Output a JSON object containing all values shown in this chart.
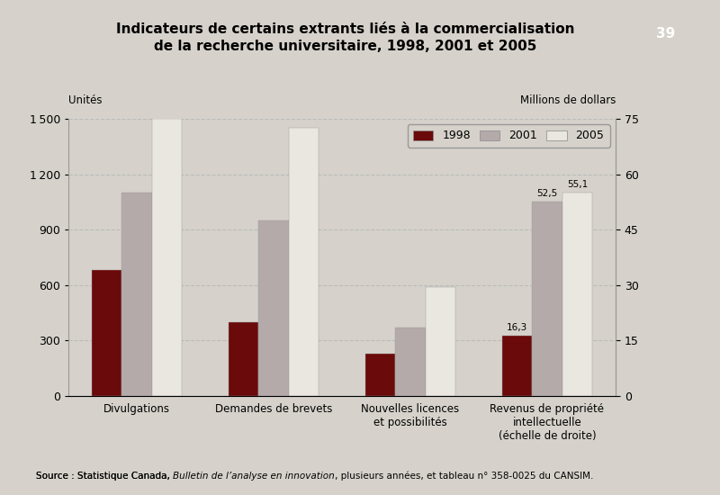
{
  "title_line1": "Indicateurs de certains extrants liés à la commercialisation",
  "title_line2": "de la recherche universitaire, 1998, 2001 et 2005",
  "page_number": "39",
  "left_axis_label": "Unités",
  "right_axis_label": "Millions de dollars",
  "ylim_left": [
    0,
    1500
  ],
  "ylim_right": [
    0,
    75
  ],
  "yticks_left": [
    0,
    300,
    600,
    900,
    1200,
    1500
  ],
  "yticks_right": [
    0,
    15,
    30,
    45,
    60,
    75
  ],
  "categories": [
    "Divulgations",
    "Demandes de brevets",
    "Nouvelles licences\net possibilités",
    "Revenus de propriété\nintellectuelle\n(échelle de droite)"
  ],
  "series": {
    "1998": [
      680,
      400,
      230,
      326
    ],
    "2001": [
      1100,
      950,
      370,
      1050
    ],
    "2005": [
      1500,
      1450,
      590,
      1102
    ]
  },
  "revenue_labels": {
    "1998": "16,3",
    "2001": "52,5",
    "2005": "55,1"
  },
  "colors": {
    "1998": "#6B0A0A",
    "2001": "#B5AAAA",
    "2005": "#EAE6E0"
  },
  "legend_years": [
    "1998",
    "2001",
    "2005"
  ],
  "bar_width": 0.22,
  "source_text_plain": "Source : Statistique Canada, ",
  "source_text_italic": "Bulletin de l’analyse en innovation",
  "source_text_end": ", plusieurs années, et tableau n° 358-0025 du CANSIM.",
  "background_color": "#D6D2CB",
  "plot_bg_color": "#D6D2CB",
  "grid_color": "#BBBBBB"
}
